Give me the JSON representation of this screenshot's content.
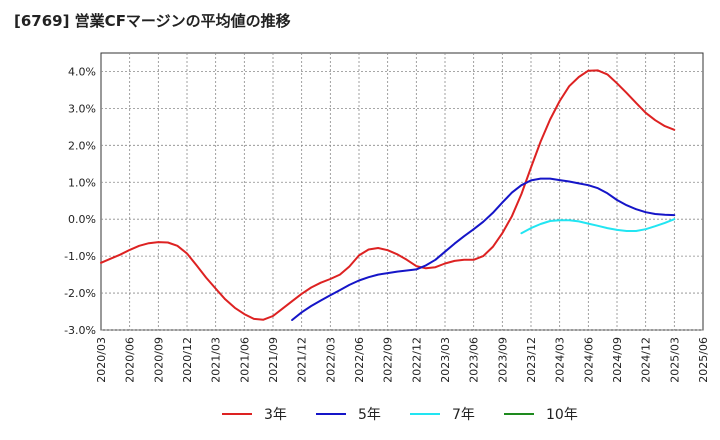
{
  "title": "[6769]  営業CFマージンの平均値の推移",
  "chart_data": {
    "type": "line",
    "title": "[6769]  営業CFマージンの平均値の推移",
    "xlabel": "",
    "ylabel": "",
    "x_ticks": [
      "2020/03",
      "2020/06",
      "2020/09",
      "2020/12",
      "2021/03",
      "2021/06",
      "2021/09",
      "2021/12",
      "2022/03",
      "2022/06",
      "2022/09",
      "2022/12",
      "2023/03",
      "2023/06",
      "2023/09",
      "2023/12",
      "2024/03",
      "2024/06",
      "2024/09",
      "2024/12",
      "2025/03",
      "2025/06"
    ],
    "ylim": [
      -3.0,
      4.5
    ],
    "y_ticks": [
      4.0,
      3.0,
      2.0,
      1.0,
      0.0,
      -1.0,
      -2.0,
      -3.0
    ],
    "y_tick_labels": [
      "4.0%",
      "3.0%",
      "2.0%",
      "1.0%",
      "0.0%",
      "-1.0%",
      "-2.0%",
      "-3.0%"
    ],
    "grid": true,
    "legend_position": "bottom",
    "series": [
      {
        "name": "3年",
        "color": "#dd2222",
        "points": [
          [
            "2020/03",
            -1.18
          ],
          [
            "2020/04",
            -1.07
          ],
          [
            "2020/05",
            -0.96
          ],
          [
            "2020/06",
            -0.83
          ],
          [
            "2020/07",
            -0.72
          ],
          [
            "2020/08",
            -0.65
          ],
          [
            "2020/09",
            -0.62
          ],
          [
            "2020/10",
            -0.63
          ],
          [
            "2020/11",
            -0.72
          ],
          [
            "2020/12",
            -0.93
          ],
          [
            "2021/01",
            -1.25
          ],
          [
            "2021/02",
            -1.58
          ],
          [
            "2021/03",
            -1.88
          ],
          [
            "2021/04",
            -2.17
          ],
          [
            "2021/05",
            -2.4
          ],
          [
            "2021/06",
            -2.57
          ],
          [
            "2021/07",
            -2.7
          ],
          [
            "2021/08",
            -2.72
          ],
          [
            "2021/09",
            -2.62
          ],
          [
            "2021/10",
            -2.42
          ],
          [
            "2021/11",
            -2.22
          ],
          [
            "2021/12",
            -2.02
          ],
          [
            "2022/01",
            -1.85
          ],
          [
            "2022/02",
            -1.72
          ],
          [
            "2022/03",
            -1.62
          ],
          [
            "2022/04",
            -1.5
          ],
          [
            "2022/05",
            -1.28
          ],
          [
            "2022/06",
            -0.98
          ],
          [
            "2022/07",
            -0.82
          ],
          [
            "2022/08",
            -0.78
          ],
          [
            "2022/09",
            -0.84
          ],
          [
            "2022/10",
            -0.95
          ],
          [
            "2022/11",
            -1.1
          ],
          [
            "2022/12",
            -1.27
          ],
          [
            "2023/01",
            -1.33
          ],
          [
            "2023/02",
            -1.3
          ],
          [
            "2023/03",
            -1.2
          ],
          [
            "2023/04",
            -1.13
          ],
          [
            "2023/05",
            -1.1
          ],
          [
            "2023/06",
            -1.1
          ],
          [
            "2023/07",
            -1.0
          ],
          [
            "2023/08",
            -0.75
          ],
          [
            "2023/09",
            -0.38
          ],
          [
            "2023/10",
            0.08
          ],
          [
            "2023/11",
            0.68
          ],
          [
            "2023/12",
            1.4
          ],
          [
            "2024/01",
            2.1
          ],
          [
            "2024/02",
            2.7
          ],
          [
            "2024/03",
            3.2
          ],
          [
            "2024/04",
            3.6
          ],
          [
            "2024/05",
            3.85
          ],
          [
            "2024/06",
            4.02
          ],
          [
            "2024/07",
            4.03
          ],
          [
            "2024/08",
            3.92
          ],
          [
            "2024/09",
            3.68
          ],
          [
            "2024/10",
            3.42
          ],
          [
            "2024/11",
            3.15
          ],
          [
            "2024/12",
            2.88
          ],
          [
            "2025/01",
            2.68
          ],
          [
            "2025/02",
            2.52
          ],
          [
            "2025/03",
            2.42
          ]
        ]
      },
      {
        "name": "5年",
        "color": "#1515c8",
        "points": [
          [
            "2021/11",
            -2.73
          ],
          [
            "2021/12",
            -2.52
          ],
          [
            "2022/01",
            -2.35
          ],
          [
            "2022/02",
            -2.2
          ],
          [
            "2022/03",
            -2.06
          ],
          [
            "2022/04",
            -1.92
          ],
          [
            "2022/05",
            -1.78
          ],
          [
            "2022/06",
            -1.66
          ],
          [
            "2022/07",
            -1.57
          ],
          [
            "2022/08",
            -1.5
          ],
          [
            "2022/09",
            -1.46
          ],
          [
            "2022/10",
            -1.42
          ],
          [
            "2022/11",
            -1.39
          ],
          [
            "2022/12",
            -1.36
          ],
          [
            "2023/01",
            -1.25
          ],
          [
            "2023/02",
            -1.1
          ],
          [
            "2023/03",
            -0.88
          ],
          [
            "2023/04",
            -0.66
          ],
          [
            "2023/05",
            -0.46
          ],
          [
            "2023/06",
            -0.27
          ],
          [
            "2023/07",
            -0.07
          ],
          [
            "2023/08",
            0.17
          ],
          [
            "2023/09",
            0.45
          ],
          [
            "2023/10",
            0.72
          ],
          [
            "2023/11",
            0.92
          ],
          [
            "2023/12",
            1.05
          ],
          [
            "2024/01",
            1.1
          ],
          [
            "2024/02",
            1.1
          ],
          [
            "2024/03",
            1.06
          ],
          [
            "2024/04",
            1.02
          ],
          [
            "2024/05",
            0.97
          ],
          [
            "2024/06",
            0.92
          ],
          [
            "2024/07",
            0.84
          ],
          [
            "2024/08",
            0.7
          ],
          [
            "2024/09",
            0.52
          ],
          [
            "2024/10",
            0.38
          ],
          [
            "2024/11",
            0.27
          ],
          [
            "2024/12",
            0.19
          ],
          [
            "2025/01",
            0.14
          ],
          [
            "2025/02",
            0.12
          ],
          [
            "2025/03",
            0.11
          ]
        ]
      },
      {
        "name": "7年",
        "color": "#22e5f2",
        "points": [
          [
            "2023/11",
            -0.38
          ],
          [
            "2023/12",
            -0.24
          ],
          [
            "2024/01",
            -0.13
          ],
          [
            "2024/02",
            -0.05
          ],
          [
            "2024/03",
            -0.03
          ],
          [
            "2024/04",
            -0.03
          ],
          [
            "2024/05",
            -0.06
          ],
          [
            "2024/06",
            -0.12
          ],
          [
            "2024/07",
            -0.18
          ],
          [
            "2024/08",
            -0.24
          ],
          [
            "2024/09",
            -0.29
          ],
          [
            "2024/10",
            -0.32
          ],
          [
            "2024/11",
            -0.32
          ],
          [
            "2024/12",
            -0.27
          ],
          [
            "2025/01",
            -0.19
          ],
          [
            "2025/02",
            -0.1
          ],
          [
            "2025/03",
            0.0
          ]
        ]
      },
      {
        "name": "10年",
        "color": "#1e8a1e",
        "points": []
      }
    ]
  }
}
